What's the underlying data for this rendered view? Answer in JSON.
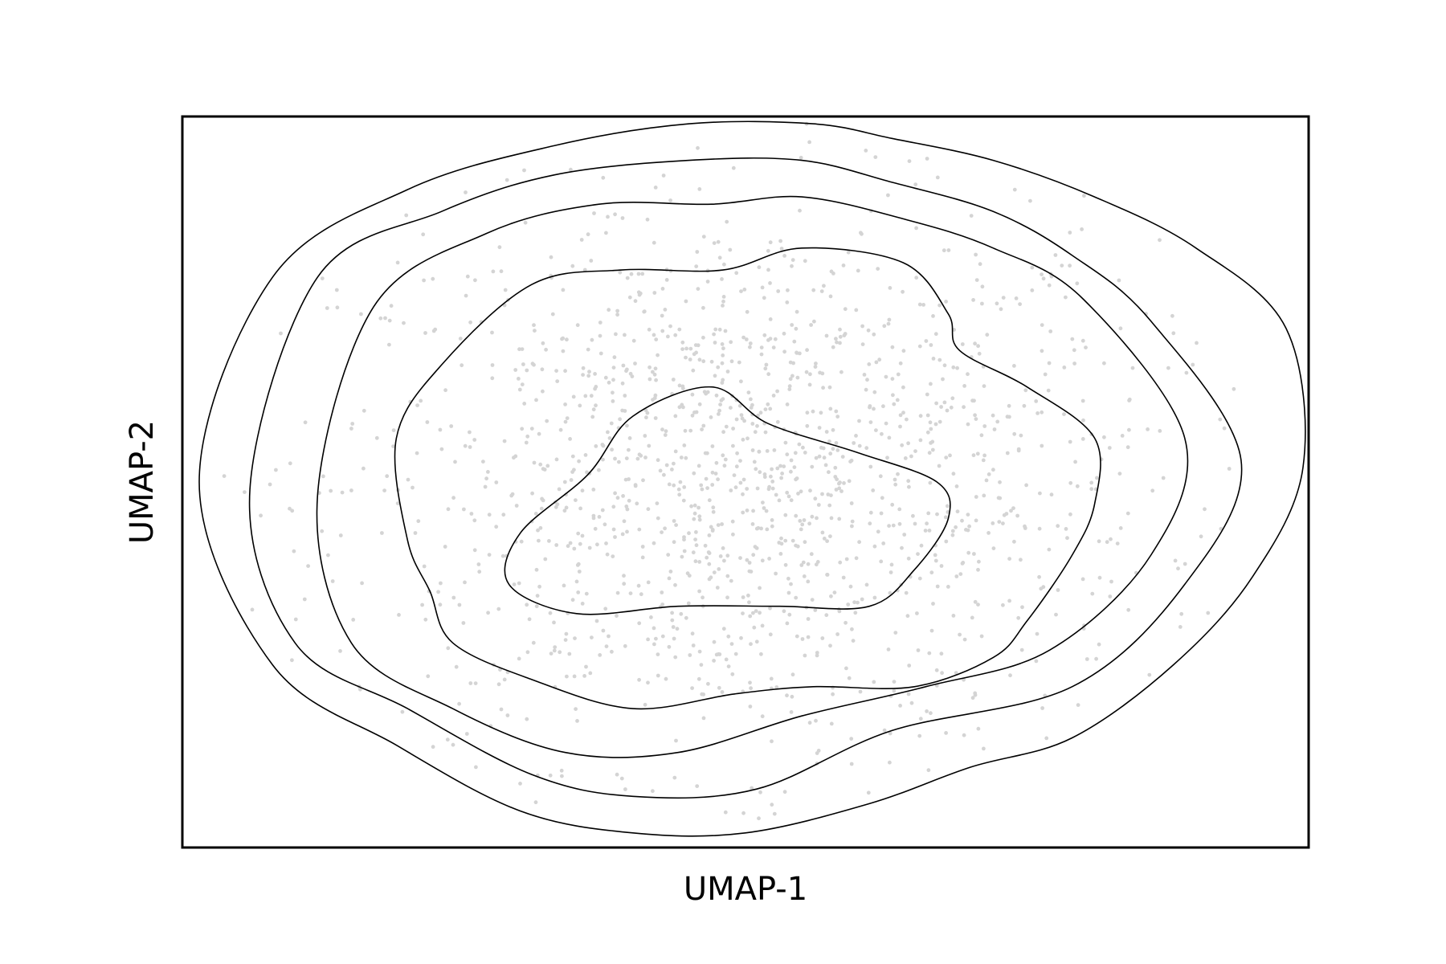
{
  "chart_data": {
    "type": "scatter",
    "subtype": "density-contour",
    "title": "",
    "xlabel": "UMAP-1",
    "ylabel": "UMAP-2",
    "xlim": [
      0,
      100
    ],
    "ylim": [
      0,
      100
    ],
    "show_ticks": false,
    "grid": false,
    "legend": "none",
    "colors": {
      "points": "#d4d4d4",
      "contours": "#000000",
      "frame": "#000000"
    },
    "point_count_estimate": 1500,
    "point_spread": {
      "center": [
        50,
        50
      ],
      "sd": [
        18,
        19
      ]
    },
    "contour_levels": [
      {
        "name": "level-1",
        "points": [
          [
            56,
            99
          ],
          [
            63,
            97
          ],
          [
            72,
            94
          ],
          [
            81,
            89
          ],
          [
            90,
            82
          ],
          [
            98,
            71
          ],
          [
            99.5,
            52
          ],
          [
            95,
            37
          ],
          [
            88,
            25
          ],
          [
            79,
            15
          ],
          [
            70,
            11
          ],
          [
            61,
            6
          ],
          [
            50,
            2
          ],
          [
            40,
            2
          ],
          [
            30,
            5
          ],
          [
            19,
            14
          ],
          [
            8,
            25
          ],
          [
            1.5,
            50
          ],
          [
            8,
            78
          ],
          [
            20,
            90
          ],
          [
            33,
            96
          ],
          [
            45,
            99
          ]
        ]
      },
      {
        "name": "level-2",
        "points": [
          [
            55,
            94
          ],
          [
            63,
            91
          ],
          [
            72,
            87
          ],
          [
            79,
            81
          ],
          [
            86,
            72
          ],
          [
            94,
            53
          ],
          [
            89,
            36
          ],
          [
            79,
            22
          ],
          [
            63,
            16
          ],
          [
            51,
            8
          ],
          [
            40,
            7
          ],
          [
            31,
            10
          ],
          [
            20,
            19
          ],
          [
            10,
            28
          ],
          [
            6,
            49
          ],
          [
            12,
            78
          ],
          [
            23,
            87
          ],
          [
            33,
            92
          ],
          [
            45,
            94
          ]
        ]
      },
      {
        "name": "level-3",
        "points": [
          [
            55,
            89
          ],
          [
            64,
            86
          ],
          [
            72,
            82
          ],
          [
            80,
            75
          ],
          [
            89,
            56
          ],
          [
            86,
            40
          ],
          [
            77,
            27
          ],
          [
            66,
            22
          ],
          [
            55,
            18
          ],
          [
            44,
            13
          ],
          [
            34,
            13
          ],
          [
            24,
            19
          ],
          [
            15,
            28
          ],
          [
            12,
            48
          ],
          [
            17,
            74
          ],
          [
            27,
            84
          ],
          [
            37,
            88
          ],
          [
            47,
            88
          ]
        ]
      },
      {
        "name": "level-4",
        "points": [
          [
            55,
            82
          ],
          [
            64,
            80
          ],
          [
            68,
            73
          ],
          [
            69,
            68
          ],
          [
            75,
            63
          ],
          [
            81,
            56
          ],
          [
            81,
            47
          ],
          [
            79,
            40
          ],
          [
            75,
            31
          ],
          [
            72,
            26
          ],
          [
            65,
            22
          ],
          [
            56,
            22
          ],
          [
            49,
            21
          ],
          [
            40,
            19
          ],
          [
            31,
            23
          ],
          [
            24,
            28
          ],
          [
            22,
            35
          ],
          [
            20,
            42
          ],
          [
            19,
            56
          ],
          [
            23,
            66
          ],
          [
            31,
            77
          ],
          [
            39,
            79
          ],
          [
            48,
            79
          ]
        ]
      },
      {
        "name": "level-5",
        "points": [
          [
            47,
            63
          ],
          [
            52,
            58
          ],
          [
            60,
            54
          ],
          [
            67,
            50
          ],
          [
            68,
            45
          ],
          [
            65,
            38
          ],
          [
            61,
            33
          ],
          [
            53,
            33
          ],
          [
            44,
            33
          ],
          [
            35,
            32
          ],
          [
            29,
            36
          ],
          [
            30,
            43
          ],
          [
            36,
            51
          ],
          [
            40,
            59
          ]
        ]
      }
    ]
  }
}
